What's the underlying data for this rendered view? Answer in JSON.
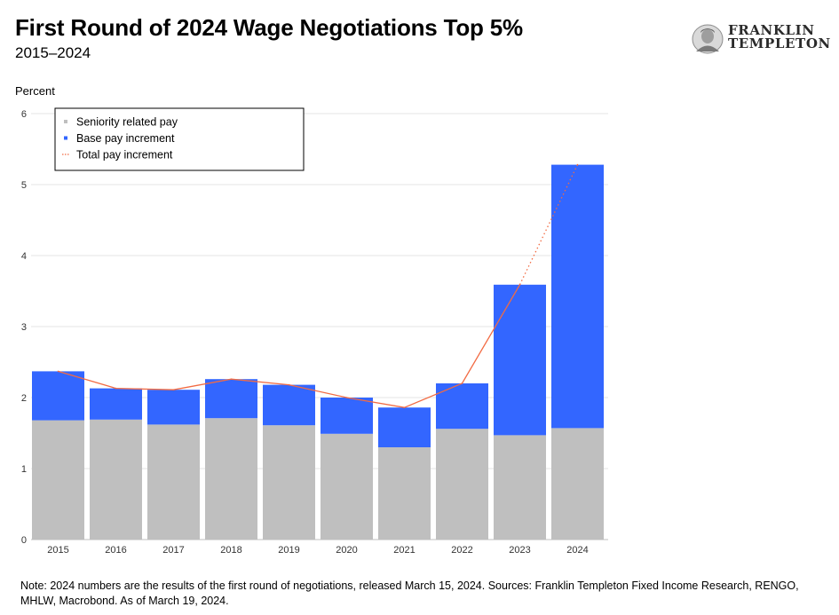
{
  "header": {
    "title": "First Round of 2024 Wage Negotiations Top 5%",
    "subtitle": "2015–2024"
  },
  "logo": {
    "line1": "FRANKLIN",
    "line2": "TEMPLETON"
  },
  "footer": {
    "note": "Note: 2024 numbers are the results of the first round of negotiations, released March 15, 2024. Sources: Franklin Templeton Fixed Income Research, RENGO, MHLW, Macrobond. As of March 19, 2024."
  },
  "chart_data": {
    "type": "bar",
    "stacked": true,
    "title": "First Round of 2024 Wage Negotiations Top 5%",
    "subtitle": "2015–2024",
    "ylabel": "Percent",
    "xlabel": "",
    "ylim": [
      0,
      6
    ],
    "yticks": [
      "0",
      "1",
      "2",
      "3",
      "4",
      "5",
      "6"
    ],
    "grid": true,
    "legend_position": "top-left",
    "categories": [
      "2015",
      "2016",
      "2017",
      "2018",
      "2019",
      "2020",
      "2021",
      "2022",
      "2023",
      "2024"
    ],
    "series": [
      {
        "name": "Seniority related pay",
        "kind": "bar",
        "color": "#bfbfbf",
        "values": [
          1.68,
          1.69,
          1.62,
          1.71,
          1.61,
          1.49,
          1.3,
          1.56,
          1.47,
          1.57
        ]
      },
      {
        "name": "Base pay increment",
        "kind": "bar",
        "color": "#3366ff",
        "values": [
          0.69,
          0.44,
          0.49,
          0.55,
          0.57,
          0.51,
          0.56,
          0.64,
          2.12,
          3.71
        ]
      },
      {
        "name": "Total pay increment",
        "kind": "line",
        "color": "#f26b43",
        "values": [
          2.37,
          2.13,
          2.11,
          2.26,
          2.18,
          2.0,
          1.86,
          2.2,
          3.59,
          5.28
        ]
      }
    ]
  }
}
